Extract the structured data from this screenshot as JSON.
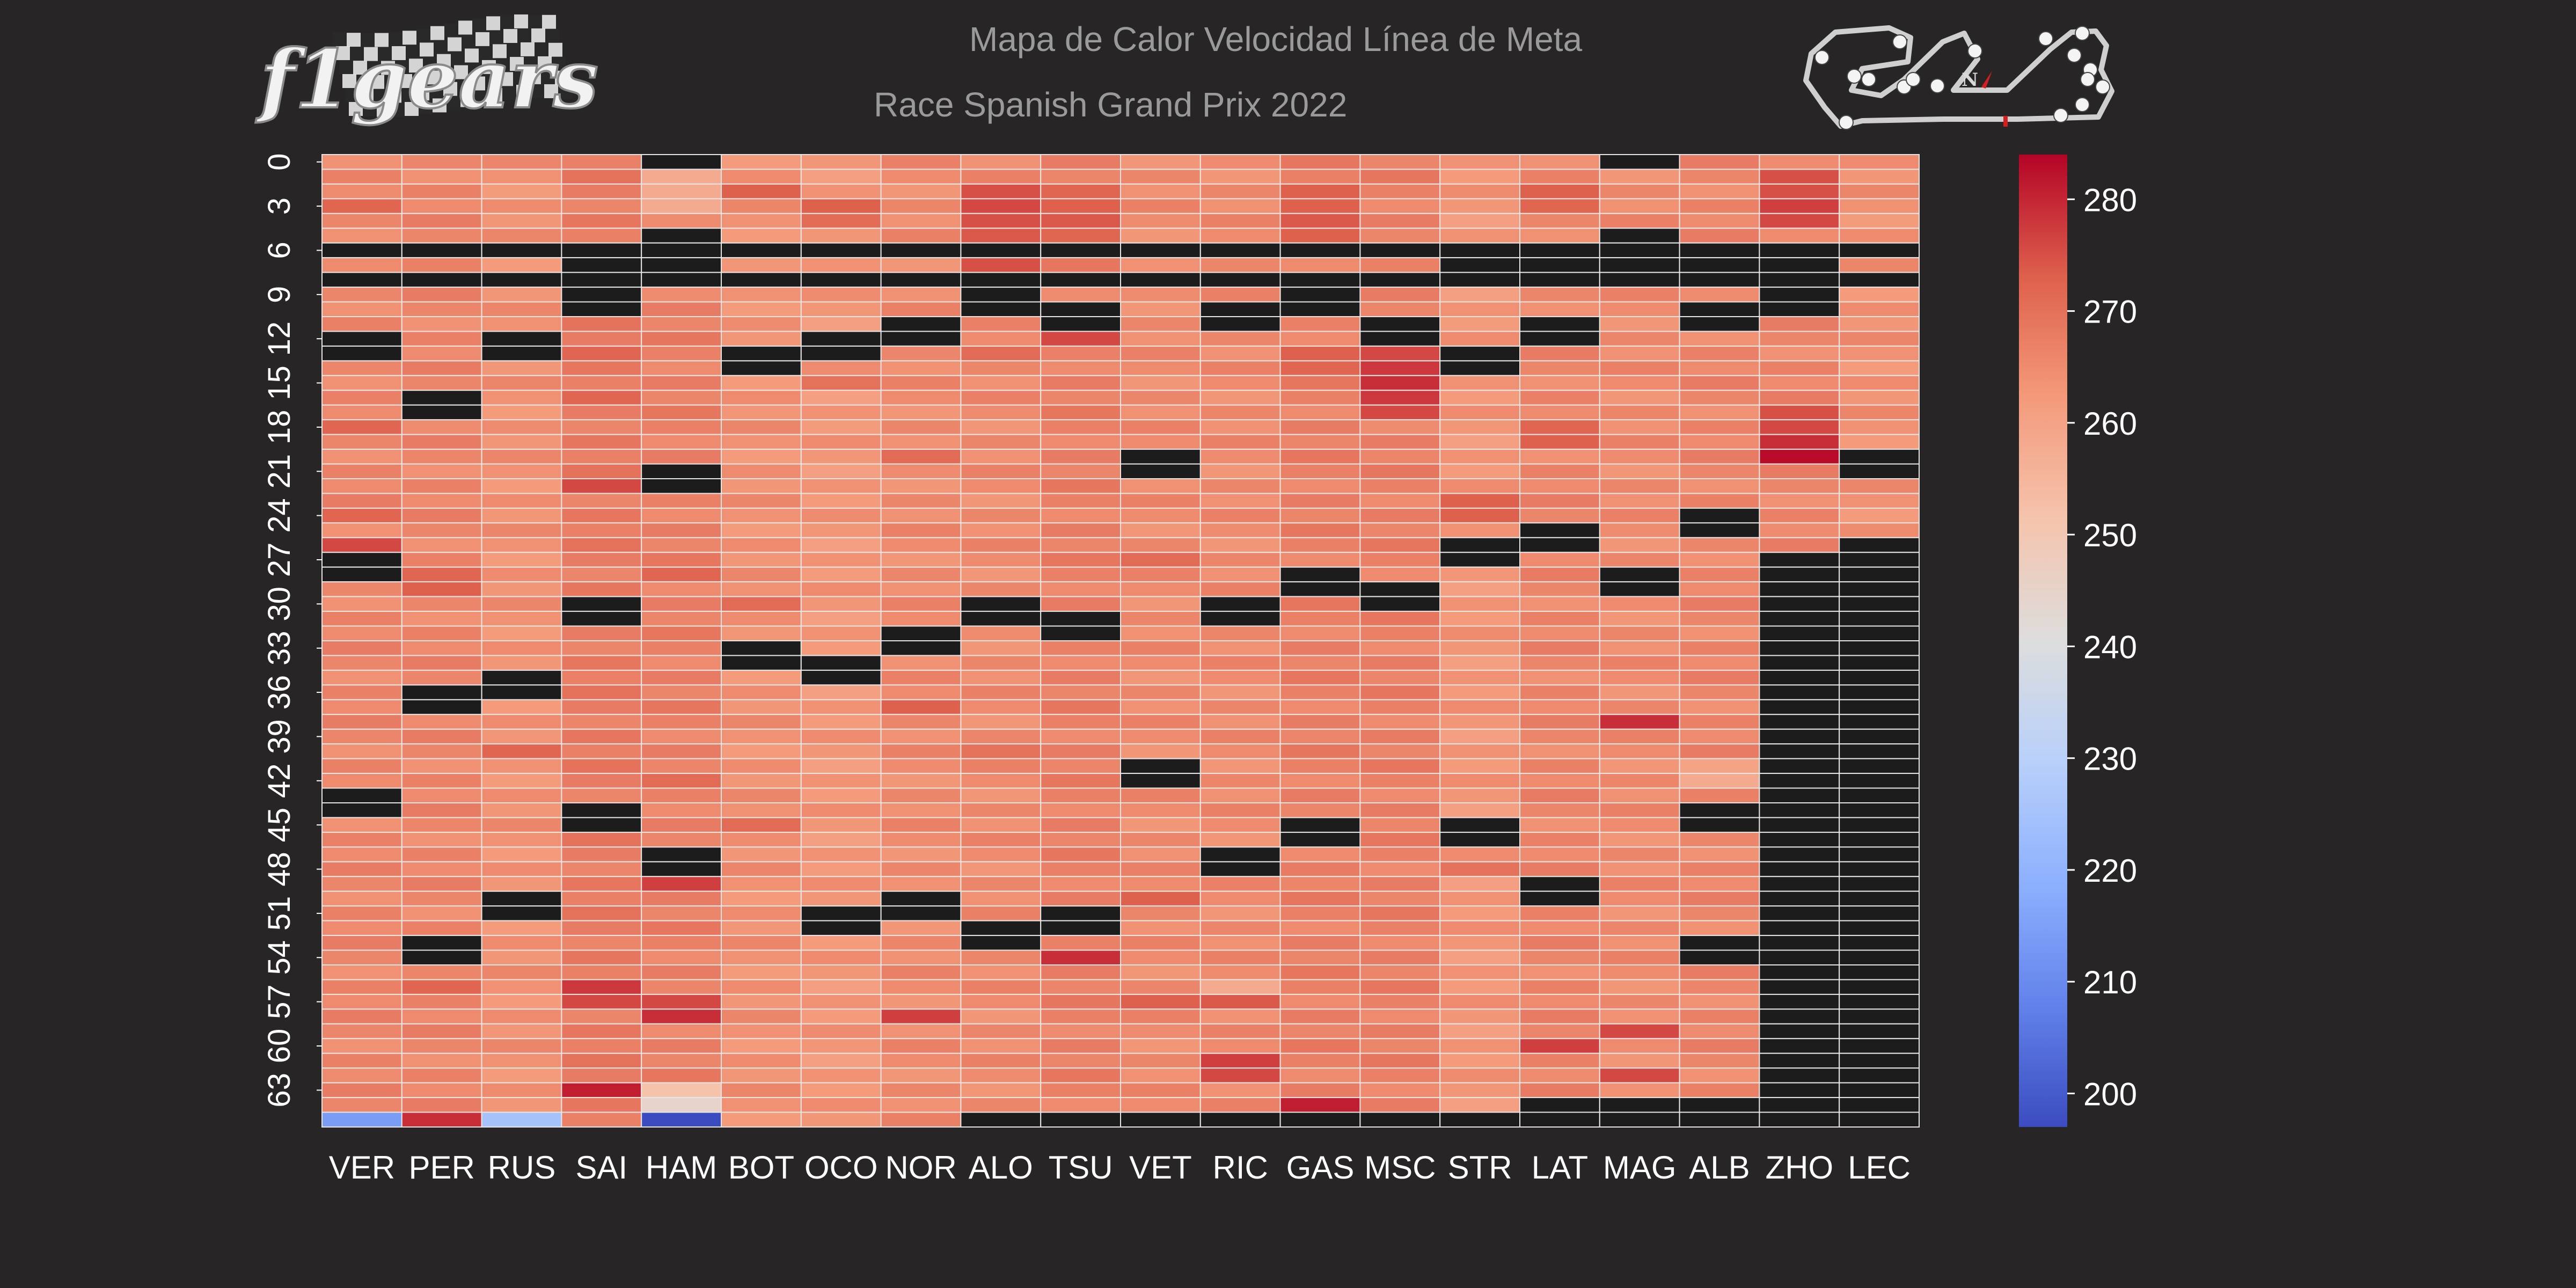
{
  "header": {
    "logo_text": "f1gears",
    "title": "Mapa de Calor Velocidad Línea de Meta",
    "subtitle": "Race Spanish Grand Prix 2022"
  },
  "track_map": {
    "icon": "circuit-map-icon",
    "compass_label": "N"
  },
  "colors": {
    "background": "#272525",
    "missing": "#1c1c1c",
    "cell_border": "#e6e6e6",
    "text": "#ffffff",
    "title": "#9a9a9a"
  },
  "chart_data": {
    "type": "heatmap",
    "title": "Mapa de Calor Velocidad Línea de Meta",
    "subtitle": "Race Spanish Grand Prix 2022",
    "xlabel": "",
    "ylabel": "",
    "drivers": [
      "VER",
      "PER",
      "RUS",
      "SAI",
      "HAM",
      "BOT",
      "OCO",
      "NOR",
      "ALO",
      "TSU",
      "VET",
      "RIC",
      "GAS",
      "MSC",
      "STR",
      "LAT",
      "MAG",
      "ALB",
      "ZHO",
      "LEC"
    ],
    "rows": 66,
    "y_tick_labels": [
      "0",
      "3",
      "6",
      "9",
      "12",
      "15",
      "18",
      "21",
      "24",
      "27",
      "30",
      "33",
      "36",
      "39",
      "42",
      "45",
      "48",
      "51",
      "54",
      "57",
      "60",
      "63"
    ],
    "y_tick_step": 3,
    "colormap": "coolwarm",
    "vmin": 197,
    "vmax": 284,
    "colorbar_ticks": [
      200,
      210,
      220,
      230,
      240,
      250,
      260,
      270,
      280
    ],
    "base_speed_kmh": [
      266,
      266,
      264,
      268,
      267,
      264,
      263,
      265,
      265,
      267,
      265,
      265,
      267,
      267,
      263,
      266,
      265,
      266,
      266,
      264
    ],
    "outliers_kmh": [
      {
        "driver": "VER",
        "lap": 3,
        "value": 272
      },
      {
        "driver": "VER",
        "lap": 18,
        "value": 272
      },
      {
        "driver": "VER",
        "lap": 24,
        "value": 272
      },
      {
        "driver": "VER",
        "lap": 26,
        "value": 276
      },
      {
        "driver": "VER",
        "lap": 65,
        "value": 214
      },
      {
        "driver": "PER",
        "lap": 28,
        "value": 272
      },
      {
        "driver": "PER",
        "lap": 29,
        "value": 273
      },
      {
        "driver": "PER",
        "lap": 56,
        "value": 272
      },
      {
        "driver": "PER",
        "lap": 65,
        "value": 279
      },
      {
        "driver": "RUS",
        "lap": 40,
        "value": 272
      },
      {
        "driver": "RUS",
        "lap": 65,
        "value": 225
      },
      {
        "driver": "SAI",
        "lap": 13,
        "value": 272
      },
      {
        "driver": "SAI",
        "lap": 16,
        "value": 272
      },
      {
        "driver": "SAI",
        "lap": 22,
        "value": 276
      },
      {
        "driver": "SAI",
        "lap": 56,
        "value": 278
      },
      {
        "driver": "SAI",
        "lap": 57,
        "value": 276
      },
      {
        "driver": "SAI",
        "lap": 63,
        "value": 281
      },
      {
        "driver": "HAM",
        "lap": 1,
        "value": 258
      },
      {
        "driver": "HAM",
        "lap": 2,
        "value": 258
      },
      {
        "driver": "HAM",
        "lap": 3,
        "value": 258
      },
      {
        "driver": "HAM",
        "lap": 28,
        "value": 272
      },
      {
        "driver": "HAM",
        "lap": 42,
        "value": 271
      },
      {
        "driver": "HAM",
        "lap": 49,
        "value": 277
      },
      {
        "driver": "HAM",
        "lap": 57,
        "value": 276
      },
      {
        "driver": "HAM",
        "lap": 58,
        "value": 279
      },
      {
        "driver": "HAM",
        "lap": 63,
        "value": 252
      },
      {
        "driver": "HAM",
        "lap": 64,
        "value": 245
      },
      {
        "driver": "HAM",
        "lap": 65,
        "value": 197
      },
      {
        "driver": "BOT",
        "lap": 2,
        "value": 273
      },
      {
        "driver": "BOT",
        "lap": 30,
        "value": 271
      },
      {
        "driver": "BOT",
        "lap": 45,
        "value": 271
      },
      {
        "driver": "OCO",
        "lap": 3,
        "value": 273
      },
      {
        "driver": "OCO",
        "lap": 4,
        "value": 271
      },
      {
        "driver": "OCO",
        "lap": 15,
        "value": 270
      },
      {
        "driver": "NOR",
        "lap": 20,
        "value": 271
      },
      {
        "driver": "NOR",
        "lap": 37,
        "value": 273
      },
      {
        "driver": "NOR",
        "lap": 58,
        "value": 277
      },
      {
        "driver": "ALO",
        "lap": 2,
        "value": 275
      },
      {
        "driver": "ALO",
        "lap": 3,
        "value": 276
      },
      {
        "driver": "ALO",
        "lap": 4,
        "value": 275
      },
      {
        "driver": "ALO",
        "lap": 5,
        "value": 274
      },
      {
        "driver": "ALO",
        "lap": 7,
        "value": 275
      },
      {
        "driver": "ALO",
        "lap": 13,
        "value": 271
      },
      {
        "driver": "ALO",
        "lap": 31,
        "value": 277
      },
      {
        "driver": "ALO",
        "lap": 40,
        "value": 270
      },
      {
        "driver": "TSU",
        "lap": 2,
        "value": 272
      },
      {
        "driver": "TSU",
        "lap": 3,
        "value": 273
      },
      {
        "driver": "TSU",
        "lap": 4,
        "value": 274
      },
      {
        "driver": "TSU",
        "lap": 5,
        "value": 272
      },
      {
        "driver": "TSU",
        "lap": 12,
        "value": 276
      },
      {
        "driver": "TSU",
        "lap": 54,
        "value": 279
      },
      {
        "driver": "VET",
        "lap": 27,
        "value": 271
      },
      {
        "driver": "VET",
        "lap": 50,
        "value": 273
      },
      {
        "driver": "VET",
        "lap": 57,
        "value": 273
      },
      {
        "driver": "RIC",
        "lap": 56,
        "value": 258
      },
      {
        "driver": "RIC",
        "lap": 57,
        "value": 274
      },
      {
        "driver": "RIC",
        "lap": 61,
        "value": 277
      },
      {
        "driver": "RIC",
        "lap": 62,
        "value": 276
      },
      {
        "driver": "GAS",
        "lap": 2,
        "value": 273
      },
      {
        "driver": "GAS",
        "lap": 3,
        "value": 273
      },
      {
        "driver": "GAS",
        "lap": 4,
        "value": 274
      },
      {
        "driver": "GAS",
        "lap": 5,
        "value": 273
      },
      {
        "driver": "GAS",
        "lap": 13,
        "value": 273
      },
      {
        "driver": "GAS",
        "lap": 14,
        "value": 272
      },
      {
        "driver": "GAS",
        "lap": 64,
        "value": 281
      },
      {
        "driver": "MSC",
        "lap": 13,
        "value": 276
      },
      {
        "driver": "MSC",
        "lap": 14,
        "value": 278
      },
      {
        "driver": "MSC",
        "lap": 15,
        "value": 279
      },
      {
        "driver": "MSC",
        "lap": 16,
        "value": 278
      },
      {
        "driver": "MSC",
        "lap": 17,
        "value": 276
      },
      {
        "driver": "STR",
        "lap": 23,
        "value": 273
      },
      {
        "driver": "STR",
        "lap": 24,
        "value": 273
      },
      {
        "driver": "STR",
        "lap": 48,
        "value": 270
      },
      {
        "driver": "LAT",
        "lap": 2,
        "value": 273
      },
      {
        "driver": "LAT",
        "lap": 3,
        "value": 272
      },
      {
        "driver": "LAT",
        "lap": 18,
        "value": 272
      },
      {
        "driver": "LAT",
        "lap": 19,
        "value": 273
      },
      {
        "driver": "LAT",
        "lap": 60,
        "value": 277
      },
      {
        "driver": "MAG",
        "lap": 38,
        "value": 279
      },
      {
        "driver": "MAG",
        "lap": 59,
        "value": 276
      },
      {
        "driver": "MAG",
        "lap": 62,
        "value": 276
      },
      {
        "driver": "ALB",
        "lap": 41,
        "value": 260
      },
      {
        "driver": "ALB",
        "lap": 42,
        "value": 258
      },
      {
        "driver": "ZHO",
        "lap": 1,
        "value": 275
      },
      {
        "driver": "ZHO",
        "lap": 2,
        "value": 275
      },
      {
        "driver": "ZHO",
        "lap": 3,
        "value": 277
      },
      {
        "driver": "ZHO",
        "lap": 4,
        "value": 276
      },
      {
        "driver": "ZHO",
        "lap": 17,
        "value": 275
      },
      {
        "driver": "ZHO",
        "lap": 18,
        "value": 276
      },
      {
        "driver": "ZHO",
        "lap": 19,
        "value": 279
      },
      {
        "driver": "ZHO",
        "lap": 20,
        "value": 283
      }
    ],
    "missing": {
      "VER": [
        6,
        8,
        12,
        13,
        27,
        28,
        43,
        44
      ],
      "PER": [
        6,
        8,
        16,
        17,
        36,
        37,
        53,
        54
      ],
      "RUS": [
        6,
        8,
        12,
        13,
        35,
        36,
        50,
        51
      ],
      "SAI": [
        6,
        7,
        8,
        9,
        10,
        30,
        31,
        44,
        45
      ],
      "HAM": [
        0,
        5,
        6,
        7,
        8,
        21,
        22,
        47,
        48
      ],
      "BOT": [
        6,
        8,
        13,
        14,
        33,
        34
      ],
      "OCO": [
        6,
        8,
        12,
        13,
        34,
        35,
        51,
        52
      ],
      "NOR": [
        6,
        8,
        11,
        12,
        32,
        33,
        50,
        51
      ],
      "ALO": [
        6,
        8,
        9,
        10,
        30,
        31,
        52,
        53,
        65
      ],
      "TSU": [
        6,
        8,
        10,
        11,
        31,
        32,
        51,
        52,
        65
      ],
      "VET": [
        6,
        8,
        20,
        21,
        41,
        42,
        65
      ],
      "RIC": [
        6,
        8,
        10,
        11,
        30,
        31,
        47,
        48,
        65
      ],
      "GAS": [
        6,
        8,
        9,
        10,
        28,
        29,
        45,
        46,
        65
      ],
      "MSC": [
        6,
        8,
        11,
        12,
        29,
        30,
        65
      ],
      "STR": [
        6,
        7,
        8,
        13,
        14,
        26,
        27,
        45,
        46,
        65
      ],
      "LAT": [
        6,
        7,
        8,
        11,
        12,
        25,
        26,
        49,
        50,
        64,
        65
      ],
      "MAG": [
        0,
        5,
        6,
        7,
        8,
        28,
        29,
        64,
        65
      ],
      "ALB": [
        6,
        7,
        8,
        10,
        11,
        24,
        25,
        44,
        45,
        53,
        54,
        64,
        65
      ],
      "ZHO": [
        6,
        7,
        8,
        9,
        10,
        27,
        28,
        29,
        30,
        31,
        32,
        33,
        34,
        35,
        36,
        37,
        38,
        39,
        40,
        41,
        42,
        43,
        44,
        45,
        46,
        47,
        48,
        49,
        50,
        51,
        52,
        53,
        54,
        55,
        56,
        57,
        58,
        59,
        60,
        61,
        62,
        63,
        64,
        65
      ],
      "LEC": [
        6,
        8,
        20,
        21,
        26,
        27,
        28,
        29,
        30,
        31,
        32,
        33,
        34,
        35,
        36,
        37,
        38,
        39,
        40,
        41,
        42,
        43,
        44,
        45,
        46,
        47,
        48,
        49,
        50,
        51,
        52,
        53,
        54,
        55,
        56,
        57,
        58,
        59,
        60,
        61,
        62,
        63,
        64,
        65
      ]
    }
  }
}
